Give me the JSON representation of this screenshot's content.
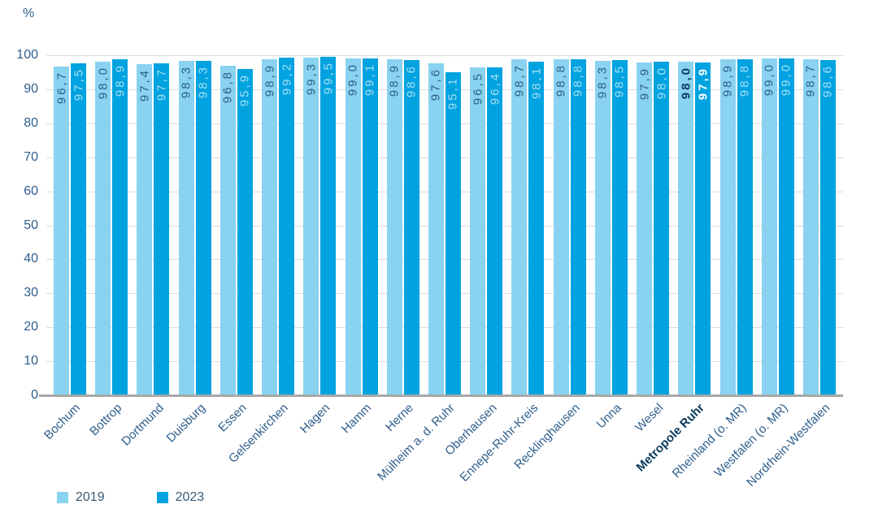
{
  "unit_label": "%",
  "legend": {
    "items": [
      {
        "label": "2019"
      },
      {
        "label": "2023"
      }
    ]
  },
  "colors": {
    "series_2019": "#89d2f0",
    "series_2023": "#00a3e0",
    "value_on_light": "#2c5f8a",
    "value_on_dark": "#a6dff5",
    "emphasis_value_on_light": "#0a3a5c",
    "emphasis_value_on_dark": "#ffffff",
    "axis_text": "#2e5e8c",
    "emphasis_axis_text": "#0a3a5c",
    "gridline": "#dcdcdc",
    "baseline": "#a8a8a8"
  },
  "chart_data": {
    "type": "bar",
    "title": "",
    "ylabel": "%",
    "xlabel": "",
    "ylim": [
      0,
      100
    ],
    "yticks": [
      0,
      10,
      20,
      30,
      40,
      50,
      60,
      70,
      80,
      90,
      100
    ],
    "grid": true,
    "legend_position": "bottom-left",
    "emphasized_category": "Metropole Ruhr",
    "emphasized_index": 15,
    "categories": [
      "Bochum",
      "Bottrop",
      "Dortmund",
      "Duisburg",
      "Essen",
      "Gelsenkirchen",
      "Hagen",
      "Hamm",
      "Herne",
      "Mülheim a. d. Ruhr",
      "Oberhausen",
      "Ennepe-Ruhr-Kreis",
      "Recklinghausen",
      "Unna",
      "Wesel",
      "Metropole Ruhr",
      "Rheinland (o. MR)",
      "Westfalen (o. MR)",
      "Nordrhein-Westfalen"
    ],
    "series": [
      {
        "name": "2019",
        "values": [
          96.7,
          98.0,
          97.4,
          98.3,
          96.8,
          98.9,
          99.3,
          99.0,
          98.9,
          97.6,
          96.5,
          98.7,
          98.8,
          98.3,
          97.9,
          98.0,
          98.9,
          99.0,
          98.7
        ],
        "labels": [
          "96,7",
          "98,0",
          "97,4",
          "98,3",
          "96,8",
          "98,9",
          "99,3",
          "99,0",
          "98,9",
          "97,6",
          "96,5",
          "98,7",
          "98,8",
          "98,3",
          "97,9",
          "98,0",
          "98,9",
          "99,0",
          "98,7"
        ]
      },
      {
        "name": "2023",
        "values": [
          97.5,
          98.9,
          97.7,
          98.3,
          95.9,
          99.2,
          99.5,
          99.1,
          98.6,
          95.1,
          96.4,
          98.1,
          98.8,
          98.5,
          98.0,
          97.9,
          98.8,
          99.0,
          98.6
        ],
        "labels": [
          "97,5",
          "98,9",
          "97,7",
          "98,3",
          "95,9",
          "99,2",
          "99,5",
          "99,1",
          "98,6",
          "95,1",
          "96,4",
          "98,1",
          "98,8",
          "98,5",
          "98,0",
          "97,9",
          "98,8",
          "99,0",
          "98,6"
        ]
      }
    ]
  }
}
